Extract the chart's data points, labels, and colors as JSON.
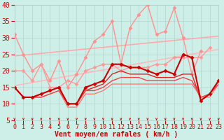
{
  "title": "",
  "xlabel": "Vent moyen/en rafales ( km/h )",
  "ylabel": "",
  "xlim": [
    0,
    23
  ],
  "ylim": [
    5,
    40
  ],
  "yticks": [
    5,
    10,
    15,
    20,
    25,
    30,
    35,
    40
  ],
  "xticks": [
    0,
    1,
    2,
    3,
    4,
    5,
    6,
    7,
    8,
    9,
    10,
    11,
    12,
    13,
    14,
    15,
    16,
    17,
    18,
    19,
    20,
    21,
    22,
    23
  ],
  "bg_color": "#ceeee8",
  "grid_color": "#aacccc",
  "lines": [
    {
      "x": [
        0,
        1,
        2,
        3,
        4,
        5,
        6,
        7,
        8,
        9,
        10,
        11,
        12,
        13,
        14,
        15,
        16,
        17,
        18,
        19,
        20,
        21,
        22,
        23
      ],
      "y": [
        31,
        25,
        20,
        22,
        17,
        23,
        15,
        19,
        24,
        29,
        31,
        35,
        22,
        33,
        37,
        40,
        31,
        32,
        39,
        30,
        19,
        26,
        null,
        null
      ],
      "color": "#ff9090",
      "lw": 1.0,
      "marker": "D",
      "ms": 2.5,
      "zorder": 3
    },
    {
      "x": [
        0,
        23
      ],
      "y": [
        24.5,
        30.5
      ],
      "color": "#ffaaaa",
      "lw": 1.2,
      "marker": null,
      "ms": 0,
      "zorder": 2
    },
    {
      "x": [
        0,
        23
      ],
      "y": [
        15.5,
        26.5
      ],
      "color": "#ffbbbb",
      "lw": 1.2,
      "marker": null,
      "ms": 0,
      "zorder": 2
    },
    {
      "x": [
        0,
        1,
        2,
        3,
        4,
        5,
        6,
        7,
        8,
        9,
        10,
        11,
        12,
        13,
        14,
        15,
        16,
        17,
        18,
        19,
        20,
        21,
        22,
        23
      ],
      "y": [
        20,
        20,
        17,
        22,
        15,
        15,
        17,
        16,
        20,
        21,
        22,
        22,
        20,
        21,
        21,
        21,
        22,
        22,
        24,
        24,
        24,
        24,
        27,
        null
      ],
      "color": "#ff9999",
      "lw": 1.0,
      "marker": "D",
      "ms": 2.5,
      "zorder": 3
    },
    {
      "x": [
        0,
        1,
        2,
        3,
        4,
        5,
        6,
        7,
        8,
        9,
        10,
        11,
        12,
        13,
        14,
        15,
        16,
        17,
        18,
        19,
        20,
        21,
        22,
        23
      ],
      "y": [
        15,
        12,
        12,
        13,
        14,
        15,
        10,
        10,
        15,
        16,
        17,
        22,
        22,
        21,
        21,
        20,
        19,
        20,
        19,
        25,
        24,
        11,
        13,
        17
      ],
      "color": "#cc0000",
      "lw": 1.5,
      "marker": "D",
      "ms": 2.5,
      "zorder": 5
    },
    {
      "x": [
        0,
        1,
        2,
        3,
        4,
        5,
        6,
        7,
        8,
        9,
        10,
        11,
        12,
        13,
        14,
        15,
        16,
        17,
        18,
        19,
        20,
        21,
        22,
        23
      ],
      "y": [
        15,
        12,
        12,
        13,
        14,
        15,
        10,
        10,
        14,
        15,
        16,
        19,
        20,
        19,
        19,
        19,
        18,
        18,
        18,
        19,
        19,
        11,
        13,
        17
      ],
      "color": "#dd2222",
      "lw": 1.0,
      "marker": null,
      "ms": 0,
      "zorder": 4
    },
    {
      "x": [
        0,
        1,
        2,
        3,
        4,
        5,
        6,
        7,
        8,
        9,
        10,
        11,
        12,
        13,
        14,
        15,
        16,
        17,
        18,
        19,
        20,
        21,
        22,
        23
      ],
      "y": [
        15,
        12,
        12,
        12,
        13,
        14,
        10,
        10,
        14,
        14,
        15,
        17,
        18,
        18,
        18,
        17,
        17,
        17,
        17,
        18,
        17,
        12,
        13,
        16
      ],
      "color": "#ee4444",
      "lw": 1.0,
      "marker": null,
      "ms": 0,
      "zorder": 4
    },
    {
      "x": [
        0,
        1,
        2,
        3,
        4,
        5,
        6,
        7,
        8,
        9,
        10,
        11,
        12,
        13,
        14,
        15,
        16,
        17,
        18,
        19,
        20,
        21,
        22,
        23
      ],
      "y": [
        15,
        12,
        12,
        12,
        13,
        14,
        9,
        9,
        13,
        13,
        14,
        16,
        16,
        16,
        16,
        16,
        16,
        16,
        16,
        16,
        16,
        12,
        12,
        16
      ],
      "color": "#ff6666",
      "lw": 0.8,
      "marker": null,
      "ms": 0,
      "zorder": 3
    }
  ],
  "font_color": "#cc0000",
  "font_size_xlabel": 7,
  "font_size_yticks": 7,
  "font_size_xticks": 6
}
